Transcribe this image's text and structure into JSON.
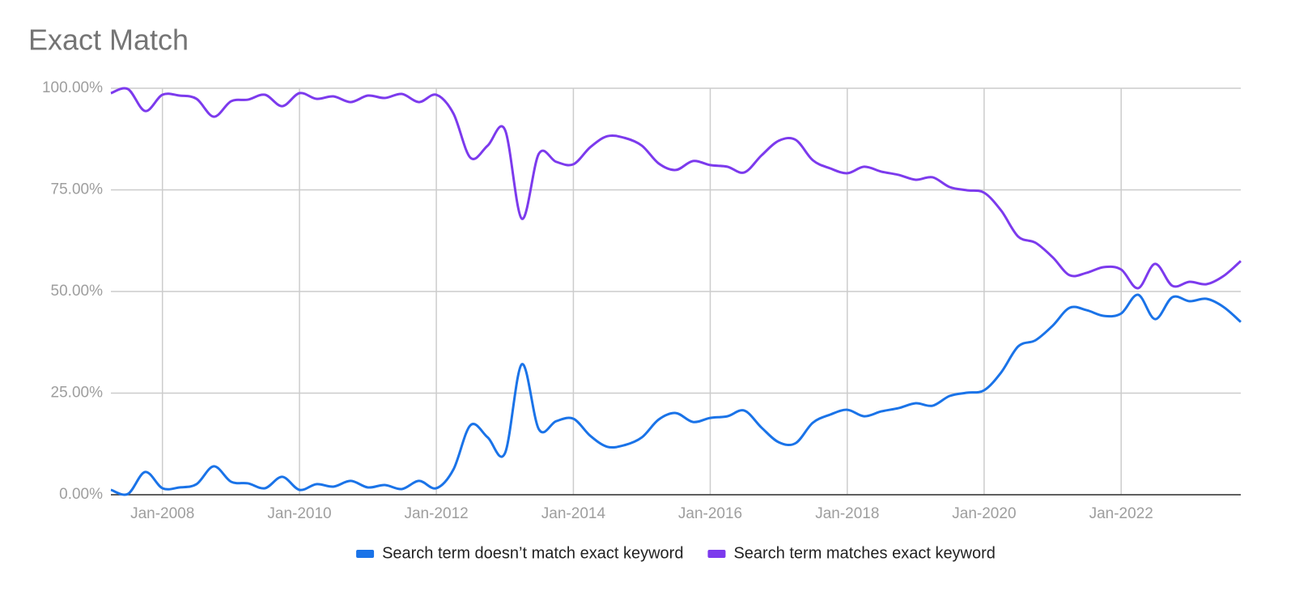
{
  "chart_data": {
    "type": "line",
    "title": "Exact Match",
    "x": [
      "Apr-2007",
      "Jul-2007",
      "Oct-2007",
      "Jan-2008",
      "Apr-2008",
      "Jul-2008",
      "Oct-2008",
      "Jan-2009",
      "Apr-2009",
      "Jul-2009",
      "Oct-2009",
      "Jan-2010",
      "Apr-2010",
      "Jul-2010",
      "Oct-2010",
      "Jan-2011",
      "Apr-2011",
      "Jul-2011",
      "Oct-2011",
      "Jan-2012",
      "Apr-2012",
      "Jul-2012",
      "Oct-2012",
      "Jan-2013",
      "Apr-2013",
      "Jul-2013",
      "Oct-2013",
      "Jan-2014",
      "Apr-2014",
      "Jul-2014",
      "Oct-2014",
      "Jan-2015",
      "Apr-2015",
      "Jul-2015",
      "Oct-2015",
      "Jan-2016",
      "Apr-2016",
      "Jul-2016",
      "Oct-2016",
      "Jan-2017",
      "Apr-2017",
      "Jul-2017",
      "Oct-2017",
      "Jan-2018",
      "Apr-2018",
      "Jul-2018",
      "Oct-2018",
      "Jan-2019",
      "Apr-2019",
      "Jul-2019",
      "Oct-2019",
      "Jan-2020",
      "Apr-2020",
      "Jul-2020",
      "Oct-2020",
      "Jan-2021",
      "Apr-2021",
      "Jul-2021",
      "Oct-2021",
      "Jan-2022",
      "Apr-2022",
      "Jul-2022",
      "Oct-2022",
      "Jan-2023",
      "Apr-2023",
      "Jul-2023",
      "Oct-2023"
    ],
    "series": [
      {
        "name": "Search term doesn’t match exact keyword",
        "color": "#1a73e8",
        "values": [
          1.2,
          0.2,
          5.6,
          1.6,
          1.8,
          2.6,
          7.0,
          3.2,
          2.8,
          1.6,
          4.4,
          1.2,
          2.6,
          2.0,
          3.4,
          1.8,
          2.4,
          1.4,
          3.4,
          1.6,
          6.2,
          17.1,
          14.1,
          10.2,
          32.1,
          16.1,
          18.1,
          18.7,
          14.5,
          11.8,
          12.2,
          14.1,
          18.5,
          20.1,
          17.9,
          18.9,
          19.3,
          20.7,
          16.5,
          12.9,
          12.7,
          17.7,
          19.7,
          20.9,
          19.3,
          20.5,
          21.3,
          22.5,
          21.9,
          24.3,
          25.1,
          25.7,
          30.1,
          36.5,
          38.0,
          41.6,
          46.0,
          45.4,
          44.0,
          44.6,
          49.2,
          43.2,
          48.6,
          47.6,
          48.2,
          46.2,
          42.5
        ]
      },
      {
        "name": "Search term matches exact keyword",
        "color": "#7c3aed",
        "values": [
          98.8,
          99.8,
          94.4,
          98.4,
          98.2,
          97.4,
          93.0,
          96.8,
          97.2,
          98.4,
          95.6,
          98.8,
          97.4,
          98.0,
          96.6,
          98.2,
          97.6,
          98.6,
          96.6,
          98.4,
          93.8,
          82.9,
          85.9,
          89.8,
          67.9,
          83.9,
          81.9,
          81.3,
          85.5,
          88.2,
          87.8,
          85.9,
          81.5,
          79.9,
          82.1,
          81.1,
          80.7,
          79.3,
          83.5,
          87.1,
          87.3,
          82.3,
          80.3,
          79.1,
          80.7,
          79.5,
          78.7,
          77.5,
          78.1,
          75.7,
          74.9,
          74.3,
          69.9,
          63.5,
          62.0,
          58.4,
          54.0,
          54.6,
          56.0,
          55.4,
          50.8,
          56.8,
          51.4,
          52.4,
          51.8,
          53.8,
          57.5
        ]
      }
    ],
    "xlim": [
      "Apr-2007",
      "Oct-2023"
    ],
    "xticks": [
      "Jan-2008",
      "Jan-2010",
      "Jan-2012",
      "Jan-2014",
      "Jan-2016",
      "Jan-2018",
      "Jan-2020",
      "Jan-2022"
    ],
    "ylim": [
      0,
      100
    ],
    "yticks": [
      {
        "value": 0,
        "label": "0.00%"
      },
      {
        "value": 25,
        "label": "25.00%"
      },
      {
        "value": 50,
        "label": "50.00%"
      },
      {
        "value": 75,
        "label": "75.00%"
      },
      {
        "value": 100,
        "label": "100.00%"
      }
    ],
    "grid": true,
    "legend": "bottom"
  }
}
